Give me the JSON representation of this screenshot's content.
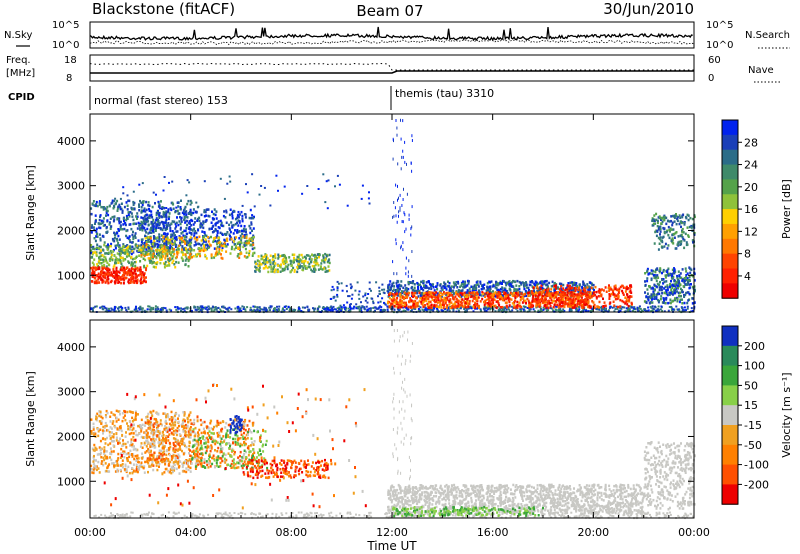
{
  "header": {
    "title_left": "Blackstone (fitACF)",
    "title_center": "Beam 07",
    "title_right": "30/Jun/2010"
  },
  "top_panels": {
    "nsky_label": "N.Sky",
    "nsky_ticks": [
      "10^5",
      "10^0"
    ],
    "nsearch_label": "N.Search",
    "nsearch_ticks": [
      "10^5",
      "10^0"
    ],
    "freq_label_1": "Freq.",
    "freq_label_2": "[MHz]",
    "freq_ticks": [
      "18",
      "8"
    ],
    "nave_label": "Nave",
    "nave_ticks": [
      "60",
      "0"
    ],
    "cpid_label": "CPID",
    "cpid_modes": [
      {
        "label": "normal (fast stereo) 153",
        "start_hour": 0
      },
      {
        "label": "themis (tau) 3310",
        "start_hour": 12
      }
    ]
  },
  "chart_data": [
    {
      "type": "heatmap",
      "quantity": "power",
      "ylabel": "Slant Range [km]",
      "ylim": [
        180,
        4600
      ],
      "y_ticks": [
        "4000",
        "3000",
        "2000",
        "1000"
      ],
      "colorbar_label": "Power [dB]",
      "colorbar_ticks": [
        "28",
        "24",
        "20",
        "16",
        "12",
        "8",
        "4"
      ],
      "colorscale": [
        "#0022ee",
        "#1a3fb8",
        "#2b6c88",
        "#3f8a6a",
        "#55a24a",
        "#8fc23a",
        "#ffd000",
        "#ffa000",
        "#ff7800",
        "#ff4400",
        "#ff2000",
        "#ee0000"
      ]
    },
    {
      "type": "heatmap",
      "quantity": "velocity",
      "ylabel": "Slant Range [km]",
      "ylim": [
        180,
        4600
      ],
      "y_ticks": [
        "4000",
        "3000",
        "2000",
        "1000"
      ],
      "colorbar_label": "Velocity [m s⁻¹]",
      "colorbar_ticks": [
        "200",
        "100",
        "50",
        "15",
        "-15",
        "-50",
        "-100",
        "-200"
      ],
      "colorscale": [
        "#1030c0",
        "#2a8a5a",
        "#3aa63a",
        "#88d048",
        "#c8c8c4",
        "#f0a020",
        "#ff8000",
        "#ff5000",
        "#ee0000"
      ],
      "xlabel": "Time UT",
      "x_ticks": [
        "00:00",
        "04:00",
        "08:00",
        "12:00",
        "16:00",
        "20:00",
        "00:00"
      ],
      "xlim": [
        0,
        24
      ]
    }
  ]
}
